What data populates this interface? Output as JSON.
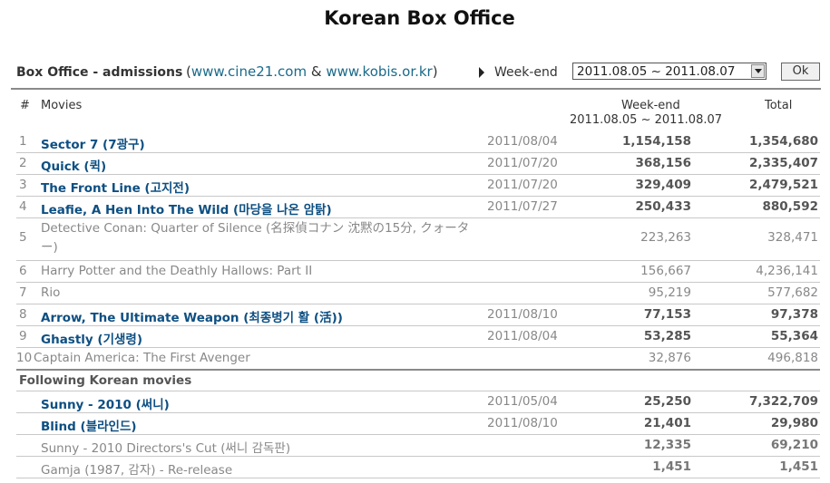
{
  "title": "Korean Box Office",
  "controls": {
    "label": "Box Office - admissions",
    "paren_open": "(",
    "link1": "www.cine21.com",
    "amp": " & ",
    "link2": "www.kobis.or.kr",
    "paren_close": ")",
    "weekend_label": "Week-end",
    "selected_range": "2011.08.05 ~ 2011.08.07",
    "ok_label": "Ok"
  },
  "headers": {
    "rank": "#",
    "movies": "Movies",
    "weekend": "Week-end",
    "weekend_range": "2011.08.05 ~ 2011.08.07",
    "total": "Total"
  },
  "rows": [
    {
      "num": "1",
      "name": "Sector 7 (7광구)",
      "date": "2011/08/04",
      "weekend": "1,154,158",
      "total": "1,354,680"
    },
    {
      "num": "2",
      "name": "Quick (퀵)",
      "date": "2011/07/20",
      "weekend": "368,156",
      "total": "2,335,407"
    },
    {
      "num": "3",
      "name": "The Front Line (고지전)",
      "date": "2011/07/20",
      "weekend": "329,409",
      "total": "2,479,521"
    },
    {
      "num": "4",
      "name": "Leafie, A Hen Into The Wild (마당을 나온 암탉)",
      "date": "2011/07/27",
      "weekend": "250,433",
      "total": "880,592"
    },
    {
      "num": "5",
      "name": "Detective Conan: Quarter of Silence (名探偵コナン 沈黙の15分, クォーター)",
      "date": "",
      "weekend": "223,263",
      "total": "328,471"
    },
    {
      "num": "6",
      "name": "Harry Potter and the Deathly Hallows: Part II",
      "date": "",
      "weekend": "156,667",
      "total": "4,236,141"
    },
    {
      "num": "7",
      "name": "Rio",
      "date": "",
      "weekend": "95,219",
      "total": "577,682"
    },
    {
      "num": "8",
      "name": "Arrow, The Ultimate Weapon (최종병기 활 (活))",
      "date": "2011/08/10",
      "weekend": "77,153",
      "total": "97,378"
    },
    {
      "num": "9",
      "name": "Ghastly (기생령)",
      "date": "2011/08/04",
      "weekend": "53,285",
      "total": "55,364"
    },
    {
      "num": "10",
      "name": "Captain America: The First Avenger",
      "date": "",
      "weekend": "32,876",
      "total": "496,818"
    }
  ],
  "following_label": "Following Korean movies",
  "following": [
    {
      "name": "Sunny - 2010 (써니)",
      "date": "2011/05/04",
      "weekend": "25,250",
      "total": "7,322,709"
    },
    {
      "name": "Blind (블라인드)",
      "date": "2011/08/10",
      "weekend": "21,401",
      "total": "29,980"
    },
    {
      "name": "Sunny - 2010 Directors's Cut (써니 감독판)",
      "date": "",
      "weekend": "12,335",
      "total": "69,210"
    },
    {
      "name": "Gamja (1987, 감자) - Re-release",
      "date": "",
      "weekend": "1,451",
      "total": "1,451"
    }
  ]
}
